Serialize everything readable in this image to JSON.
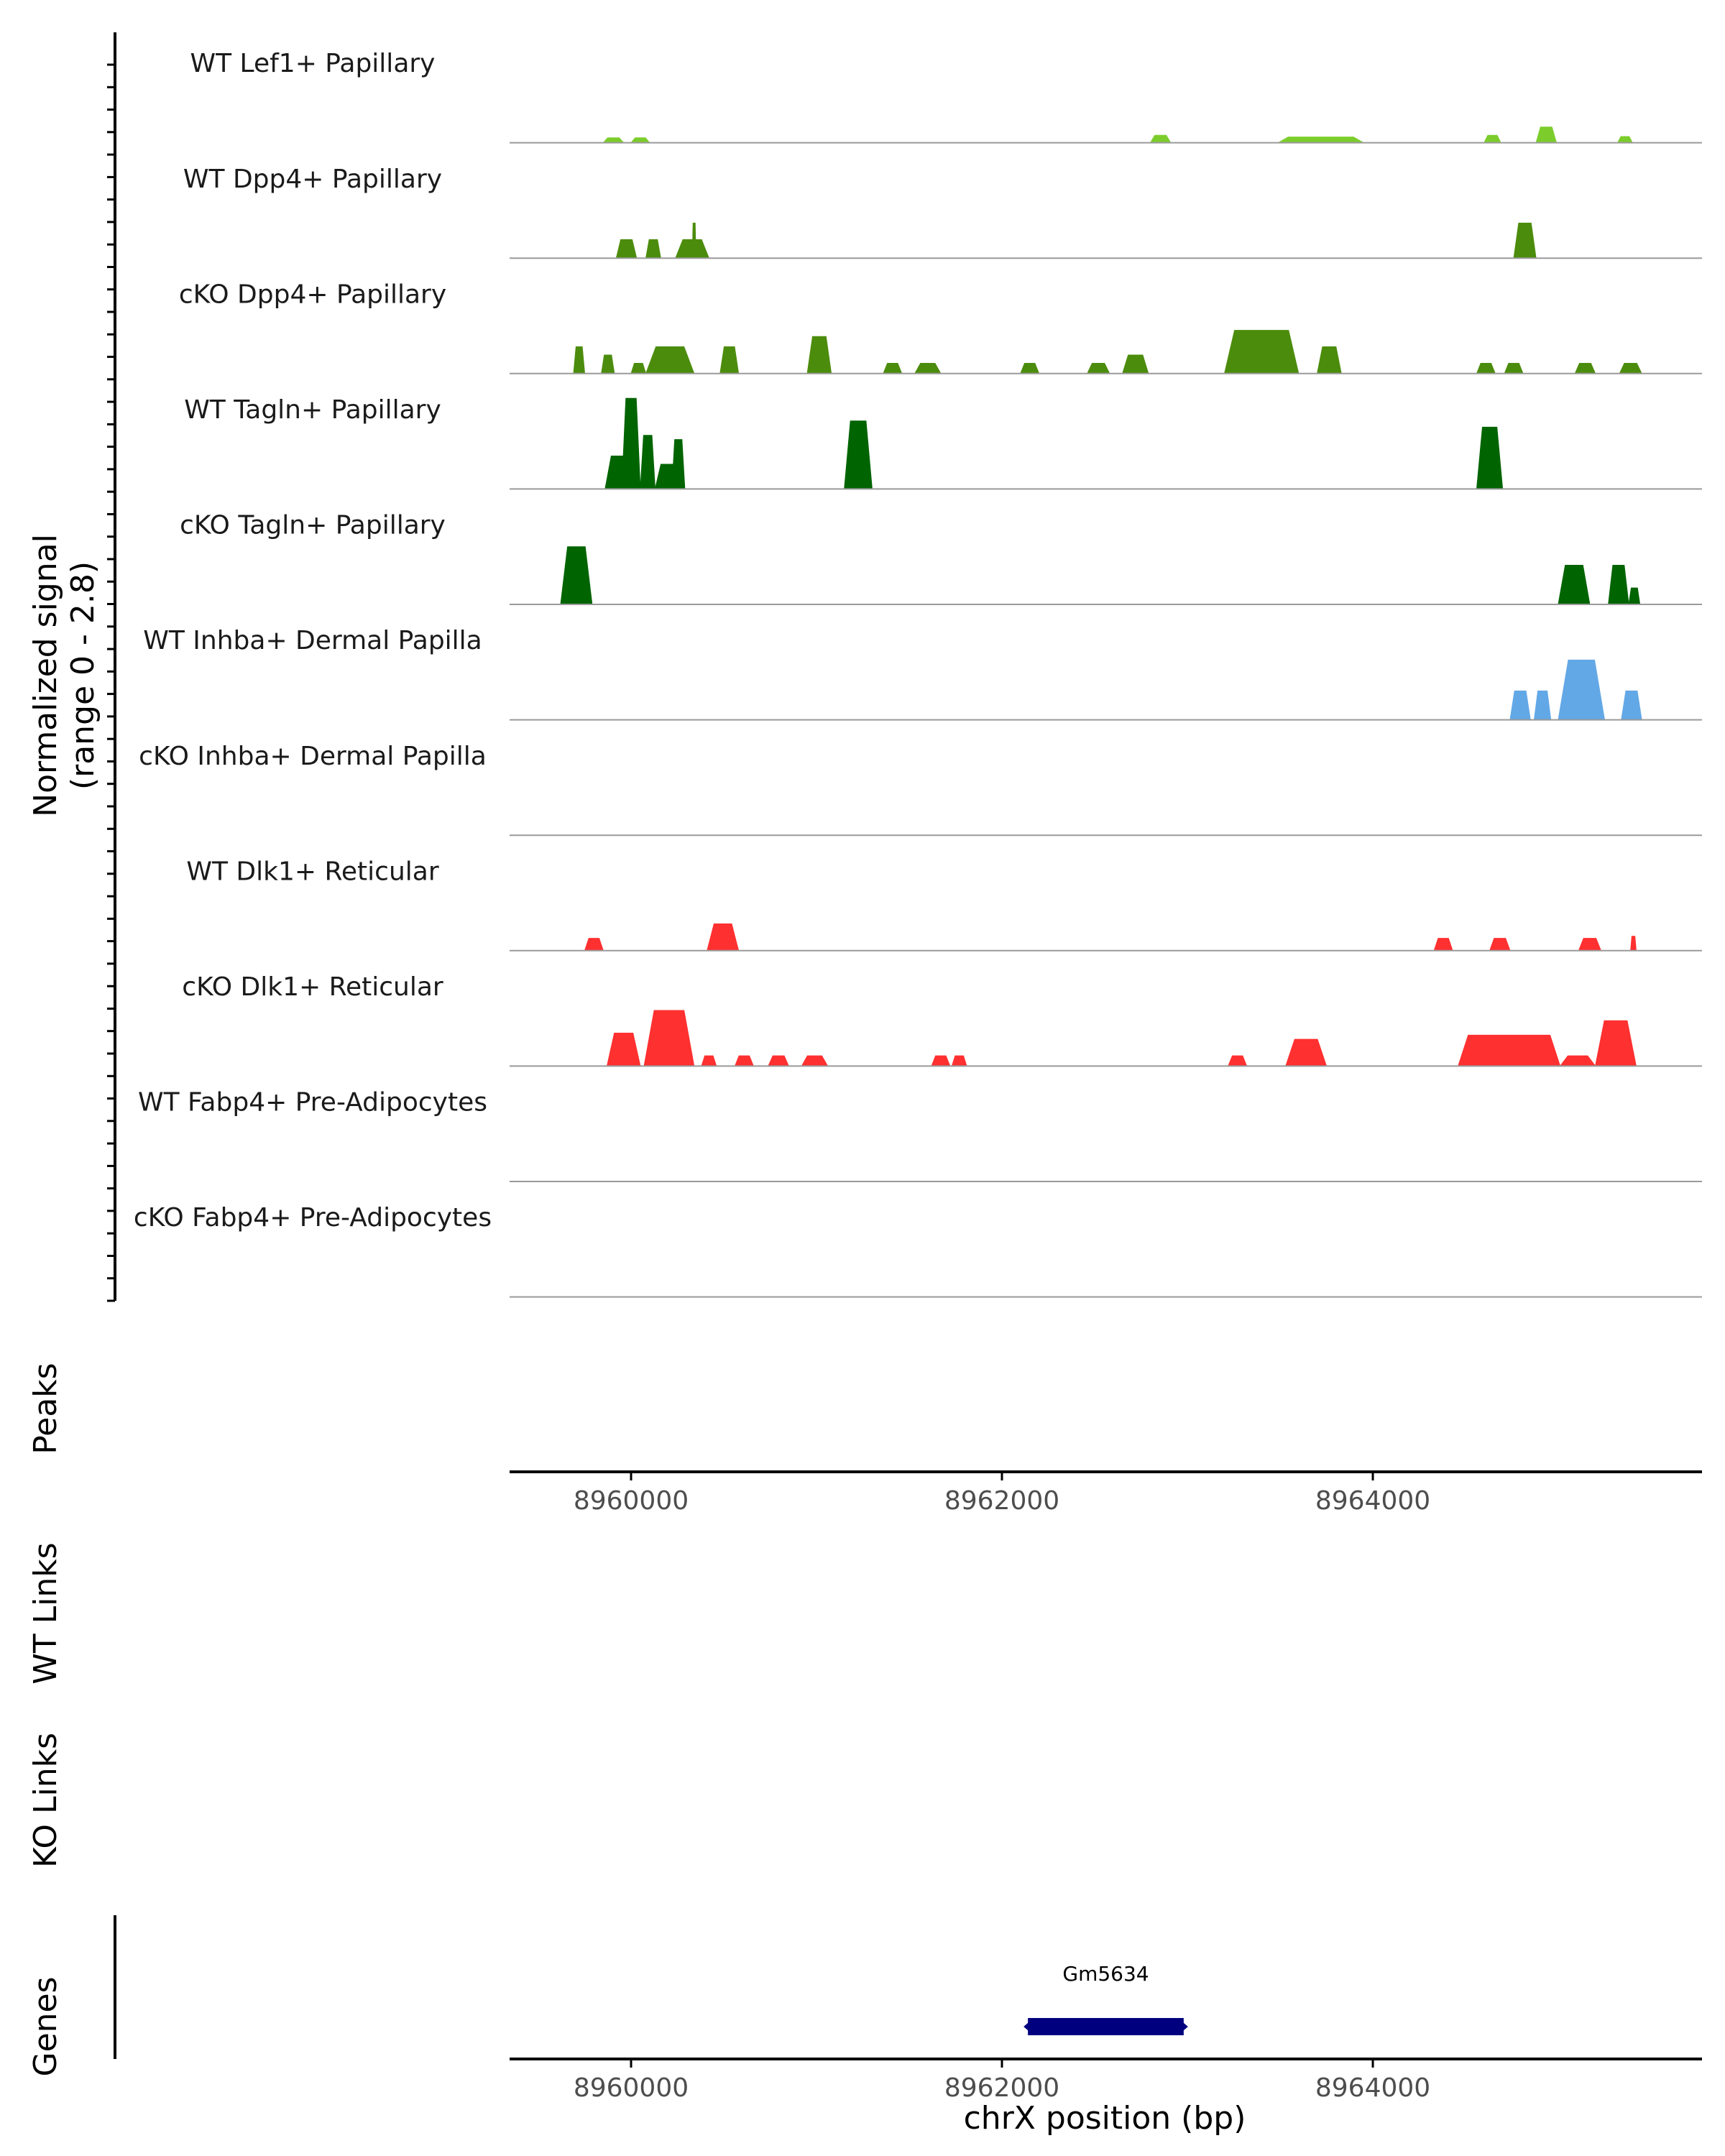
{
  "chart_data": {
    "type": "area",
    "title": "",
    "chromosome": "chrX",
    "xlabel": "chrX position (bp)",
    "xlim": [
      8959345,
      8965775
    ],
    "x_ticks": [
      8960000,
      8962000,
      8964000
    ],
    "x_tick_labels": [
      "8960000",
      "8962000",
      "8964000"
    ],
    "ylabel_line1": "Normalized signal",
    "ylabel_line2": "(range 0 - 2.8)",
    "ylim": [
      0,
      2.8
    ],
    "coverage_tracks": [
      {
        "name": "WT Lef1+ Papillary",
        "color": "#7ccd2c",
        "peaks": [
          [
            8959850,
            8959960,
            0.12
          ],
          [
            8960000,
            8960100,
            0.12
          ],
          [
            8962800,
            8962910,
            0.18
          ],
          [
            8963490,
            8963950,
            0.14
          ],
          [
            8964600,
            8964690,
            0.18
          ],
          [
            8964880,
            8964990,
            0.38
          ],
          [
            8965320,
            8965400,
            0.15
          ]
        ]
      },
      {
        "name": "WT Dpp4+ Papillary",
        "color": "#4c8c0c",
        "peaks": [
          [
            8959920,
            8960030,
            0.45
          ],
          [
            8960080,
            8960160,
            0.45
          ],
          [
            8960240,
            8960420,
            0.45
          ],
          [
            8960330,
            8960350,
            0.85
          ],
          [
            8964760,
            8964880,
            0.85
          ]
        ]
      },
      {
        "name": "cKO Dpp4+ Papillary",
        "color": "#4c8c0c",
        "peaks": [
          [
            8959690,
            8959750,
            0.65
          ],
          [
            8959840,
            8959910,
            0.45
          ],
          [
            8960000,
            8960080,
            0.25
          ],
          [
            8960080,
            8960340,
            0.65
          ],
          [
            8960480,
            8960580,
            0.65
          ],
          [
            8960950,
            8961080,
            0.9
          ],
          [
            8961360,
            8961460,
            0.25
          ],
          [
            8961530,
            8961670,
            0.25
          ],
          [
            8962100,
            8962200,
            0.25
          ],
          [
            8962460,
            8962580,
            0.25
          ],
          [
            8962650,
            8962790,
            0.45
          ],
          [
            8963200,
            8963600,
            1.05
          ],
          [
            8963700,
            8963830,
            0.65
          ],
          [
            8964560,
            8964660,
            0.25
          ],
          [
            8964710,
            8964810,
            0.25
          ],
          [
            8965090,
            8965200,
            0.25
          ],
          [
            8965330,
            8965450,
            0.25
          ]
        ]
      },
      {
        "name": "WT Tagln+ Papillary",
        "color": "#006400",
        "peaks": [
          [
            8959860,
            8960010,
            0.8
          ],
          [
            8959950,
            8960050,
            2.2
          ],
          [
            8960050,
            8960130,
            1.3
          ],
          [
            8960130,
            8960270,
            0.6
          ],
          [
            8960220,
            8960290,
            1.2
          ],
          [
            8961150,
            8961300,
            1.65
          ],
          [
            8964560,
            8964700,
            1.5
          ]
        ]
      },
      {
        "name": "cKO Tagln+ Papillary",
        "color": "#006400",
        "peaks": [
          [
            8959620,
            8959790,
            1.4
          ],
          [
            8965000,
            8965170,
            0.95
          ],
          [
            8965270,
            8965380,
            0.95
          ],
          [
            8965380,
            8965440,
            0.4
          ]
        ]
      },
      {
        "name": "WT Inhba+ Dermal Papilla",
        "color": "#63a8e6",
        "peaks": [
          [
            8964740,
            8964850,
            0.7
          ],
          [
            8964870,
            8964960,
            0.7
          ],
          [
            8965000,
            8965250,
            1.45
          ],
          [
            8965340,
            8965450,
            0.7
          ]
        ]
      },
      {
        "name": "cKO Inhba+ Dermal Papilla",
        "color": "#63a8e6",
        "peaks": []
      },
      {
        "name": "WT Dlk1+ Reticular",
        "color": "#ff3030",
        "peaks": [
          [
            8959750,
            8959850,
            0.3
          ],
          [
            8960410,
            8960580,
            0.65
          ],
          [
            8964330,
            8964430,
            0.3
          ],
          [
            8964630,
            8964740,
            0.3
          ],
          [
            8965110,
            8965230,
            0.3
          ],
          [
            8965390,
            8965420,
            0.35
          ]
        ]
      },
      {
        "name": "cKO Dlk1+ Reticular",
        "color": "#ff3030",
        "peaks": [
          [
            8959870,
            8960050,
            0.8
          ],
          [
            8960070,
            8960340,
            1.35
          ],
          [
            8960380,
            8960460,
            0.25
          ],
          [
            8960560,
            8960660,
            0.25
          ],
          [
            8960740,
            8960850,
            0.25
          ],
          [
            8960920,
            8961060,
            0.25
          ],
          [
            8961620,
            8961720,
            0.25
          ],
          [
            8961730,
            8961810,
            0.25
          ],
          [
            8963220,
            8963320,
            0.25
          ],
          [
            8963530,
            8963750,
            0.65
          ],
          [
            8964460,
            8965010,
            0.75
          ],
          [
            8965010,
            8965200,
            0.25
          ],
          [
            8965200,
            8965420,
            1.1
          ]
        ]
      },
      {
        "name": "WT Fabp4+ Pre-Adipocytes",
        "color": "#b0b0b0",
        "peaks": []
      },
      {
        "name": "cKO Fabp4+ Pre-Adipocytes",
        "color": "#b0b0b0",
        "peaks": []
      }
    ],
    "other_track_labels": [
      "Peaks",
      "WT Links",
      "KO Links",
      "Genes"
    ],
    "genes": [
      {
        "name": "Gm5634",
        "start": 8962140,
        "end": 8962980,
        "strand": "-",
        "color": "#00007f"
      }
    ]
  }
}
